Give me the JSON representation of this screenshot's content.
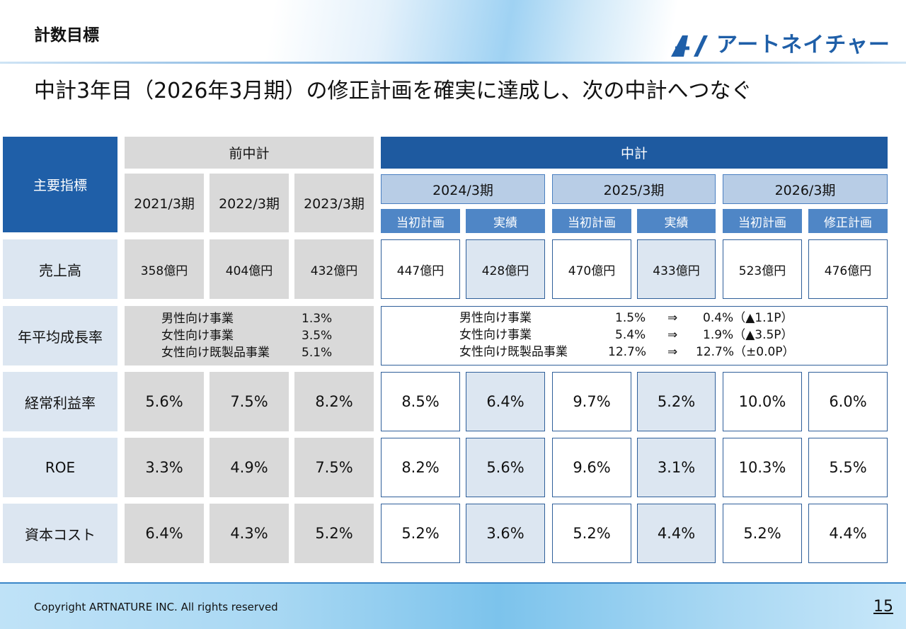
{
  "header": {
    "section_title": "計数目標",
    "logo_text": "アートネイチャー",
    "headline": "中計3年目（2026年3月期）の修正計画を確実に達成し、次の中計へつなぐ"
  },
  "table": {
    "corner_label": "主要指標",
    "group_prev": "前中計",
    "group_current": "中計",
    "prev_years": [
      "2021/3期",
      "2022/3期",
      "2023/3期"
    ],
    "current_years": [
      "2024/3期",
      "2025/3期",
      "2026/3期"
    ],
    "current_subheaders": [
      "当初計画",
      "実績",
      "当初計画",
      "実績",
      "当初計画",
      "修正計画"
    ],
    "rows": {
      "sales": {
        "label": "売上高",
        "prev": [
          "358億円",
          "404億円",
          "432億円"
        ],
        "current": [
          "447億円",
          "428億円",
          "470億円",
          "433億円",
          "523億円",
          "476億円"
        ]
      },
      "growth": {
        "label": "年平均成長率",
        "prev": [
          {
            "segment": "男性向け事業",
            "value": "1.3%"
          },
          {
            "segment": "女性向け事業",
            "value": "3.5%"
          },
          {
            "segment": "女性向け既製品事業",
            "value": "5.1%"
          }
        ],
        "current": [
          {
            "segment": "男性向け事業",
            "original": "1.5%",
            "arrow": "⇒",
            "revised": "0.4%（▲1.1P）"
          },
          {
            "segment": "女性向け事業",
            "original": "5.4%",
            "arrow": "⇒",
            "revised": "1.9%（▲3.5P）"
          },
          {
            "segment": "女性向け既製品事業",
            "original": "12.7%",
            "arrow": "⇒",
            "revised": "12.7%（±0.0P）"
          }
        ]
      },
      "ordinary_margin": {
        "label": "経常利益率",
        "prev": [
          "5.6%",
          "7.5%",
          "8.2%"
        ],
        "current": [
          "8.5%",
          "6.4%",
          "9.7%",
          "5.2%",
          "10.0%",
          "6.0%"
        ]
      },
      "roe": {
        "label": "ROE",
        "prev": [
          "3.3%",
          "4.9%",
          "7.5%"
        ],
        "current": [
          "8.2%",
          "5.6%",
          "9.6%",
          "3.1%",
          "10.3%",
          "5.5%"
        ]
      },
      "capital_cost": {
        "label": "資本コスト",
        "prev": [
          "6.4%",
          "4.3%",
          "5.2%"
        ],
        "current": [
          "5.2%",
          "3.6%",
          "5.2%",
          "4.4%",
          "5.2%",
          "4.4%"
        ]
      }
    }
  },
  "footer": {
    "copyright": "Copyright ARTNATURE INC. All rights reserved",
    "page_number": "15"
  },
  "colors": {
    "navy": "#1f5fa8",
    "sub_header_blue": "#4f86c6",
    "light_blue_cell": "#dce6f1",
    "grey_cell": "#d9d9d9",
    "brand_logo": "#1f5fa8"
  }
}
